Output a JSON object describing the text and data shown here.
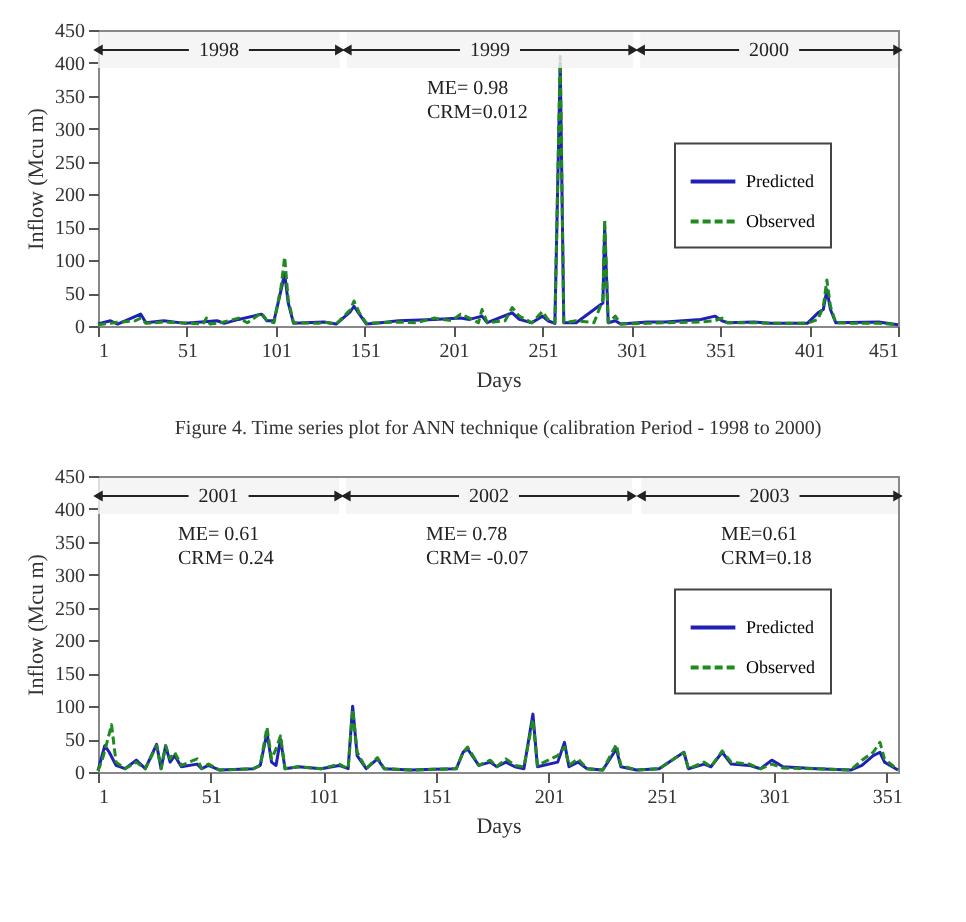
{
  "chart_data": [
    {
      "type": "line",
      "xlabel": "Days",
      "ylabel": "Inflow (Mcu m)",
      "xlim": [
        1,
        451
      ],
      "xticks": [
        1,
        51,
        101,
        151,
        201,
        251,
        301,
        351,
        401,
        451
      ],
      "ylim": [
        0,
        450
      ],
      "yticks": [
        0,
        50,
        100,
        150,
        200,
        250,
        300,
        350,
        400,
        450
      ],
      "grid": false,
      "legend": "right",
      "bands": [
        {
          "axis": "x",
          "from": 1,
          "to": 137,
          "label": "1998"
        },
        {
          "axis": "x",
          "from": 141,
          "to": 302,
          "label": "1999"
        },
        {
          "axis": "x",
          "from": 306,
          "to": 451,
          "label": "2000"
        }
      ],
      "annotations": [
        "ME= 0.98\nCRM=0.012",
        "Figure 4. Time series plot for ANN technique (calibration Period - 1998 to 2000)"
      ],
      "series": [
        {
          "name": "Predicted",
          "color": "#2020b8",
          "line_style": "solid",
          "x": [
            1,
            8,
            12,
            25,
            28,
            38,
            50,
            68,
            72,
            80,
            93,
            96,
            100,
            104,
            106,
            108,
            111,
            128,
            135,
            143,
            145,
            148,
            152,
            160,
            170,
            190,
            205,
            210,
            217,
            220,
            234,
            238,
            245,
            251,
            254,
            258,
            261,
            263,
            270,
            285,
            286,
            288,
            292,
            295,
            310,
            320,
            340,
            348,
            352,
            355,
            370,
            380,
            400,
            406,
            409,
            411,
            413,
            416,
            440,
            451
          ],
          "values": [
            3,
            8,
            3,
            18,
            5,
            8,
            4,
            8,
            4,
            10,
            18,
            8,
            8,
            55,
            80,
            35,
            4,
            6,
            3,
            22,
            30,
            18,
            3,
            5,
            8,
            10,
            12,
            10,
            15,
            5,
            20,
            10,
            5,
            15,
            8,
            4,
            400,
            5,
            5,
            35,
            150,
            5,
            8,
            3,
            6,
            6,
            10,
            15,
            8,
            5,
            6,
            4,
            4,
            20,
            25,
            55,
            25,
            5,
            6,
            2
          ]
        },
        {
          "name": "Observed",
          "color": "#1f8a1f",
          "line_style": "dashed",
          "x": [
            1,
            10,
            22,
            25,
            28,
            38,
            48,
            60,
            62,
            64,
            70,
            80,
            85,
            93,
            96,
            100,
            104,
            106,
            108,
            111,
            125,
            128,
            135,
            143,
            145,
            148,
            152,
            160,
            170,
            180,
            190,
            195,
            200,
            205,
            210,
            215,
            217,
            220,
            230,
            234,
            238,
            245,
            251,
            254,
            258,
            261,
            263,
            270,
            280,
            285,
            286,
            288,
            292,
            295,
            310,
            320,
            340,
            348,
            352,
            355,
            370,
            380,
            400,
            406,
            409,
            411,
            413,
            416,
            425,
            440,
            451
          ],
          "values": [
            2,
            5,
            8,
            12,
            4,
            6,
            5,
            3,
            12,
            3,
            5,
            12,
            5,
            20,
            8,
            5,
            60,
            105,
            40,
            5,
            4,
            6,
            3,
            25,
            38,
            20,
            4,
            5,
            6,
            5,
            12,
            10,
            8,
            18,
            12,
            5,
            25,
            5,
            8,
            28,
            15,
            5,
            22,
            10,
            5,
            410,
            5,
            8,
            5,
            40,
            162,
            5,
            15,
            3,
            4,
            5,
            6,
            8,
            12,
            5,
            5,
            4,
            4,
            10,
            30,
            70,
            30,
            5,
            4,
            4,
            2
          ]
        }
      ]
    },
    {
      "type": "line",
      "xlabel": "Days",
      "ylabel": "Inflow (Mcu m)",
      "xlim": [
        1,
        356
      ],
      "xticks": [
        1,
        51,
        101,
        151,
        201,
        251,
        301,
        351
      ],
      "ylim": [
        0,
        450
      ],
      "yticks": [
        0,
        50,
        100,
        150,
        200,
        250,
        300,
        350,
        400,
        450
      ],
      "grid": false,
      "legend": "right",
      "bands": [
        {
          "axis": "x",
          "from": 1,
          "to": 108,
          "label": "2001"
        },
        {
          "axis": "x",
          "from": 111,
          "to": 238,
          "label": "2002"
        },
        {
          "axis": "x",
          "from": 242,
          "to": 356,
          "label": "2003"
        }
      ],
      "annotations": [
        "ME= 0.61\nCRM= 0.24",
        "ME= 0.78\nCRM= -0.07",
        "ME=0.61\nCRM=0.18"
      ],
      "series": [
        {
          "name": "Predicted",
          "color": "#2020b8",
          "line_style": "solid",
          "x": [
            1,
            4,
            6,
            9,
            13,
            18,
            22,
            27,
            29,
            31,
            33,
            35,
            38,
            45,
            47,
            50,
            55,
            70,
            73,
            76,
            78,
            80,
            82,
            84,
            90,
            100,
            108,
            112,
            114,
            116,
            120,
            125,
            128,
            140,
            150,
            160,
            163,
            165,
            170,
            175,
            178,
            182,
            186,
            190,
            194,
            196,
            205,
            208,
            210,
            214,
            218,
            225,
            231,
            233,
            240,
            250,
            261,
            263,
            270,
            273,
            278,
            282,
            290,
            295,
            300,
            305,
            320,
            335,
            340,
            345,
            348,
            350,
            356
          ],
          "values": [
            2,
            40,
            30,
            10,
            5,
            18,
            5,
            42,
            5,
            40,
            15,
            25,
            8,
            12,
            5,
            10,
            3,
            5,
            10,
            60,
            15,
            10,
            50,
            5,
            8,
            5,
            10,
            5,
            100,
            25,
            5,
            20,
            5,
            3,
            4,
            5,
            30,
            35,
            10,
            15,
            8,
            15,
            8,
            5,
            88,
            8,
            15,
            45,
            8,
            15,
            5,
            3,
            35,
            8,
            3,
            5,
            30,
            5,
            12,
            8,
            30,
            12,
            10,
            5,
            18,
            8,
            5,
            3,
            10,
            25,
            30,
            15,
            3
          ]
        },
        {
          "name": "Observed",
          "color": "#1f8a1f",
          "line_style": "dashed",
          "x": [
            1,
            3,
            5,
            7,
            9,
            13,
            18,
            22,
            27,
            29,
            31,
            33,
            35,
            38,
            45,
            47,
            50,
            55,
            70,
            73,
            76,
            78,
            80,
            82,
            84,
            90,
            100,
            108,
            112,
            114,
            116,
            120,
            125,
            128,
            140,
            150,
            160,
            163,
            165,
            170,
            175,
            178,
            182,
            186,
            190,
            194,
            196,
            205,
            208,
            210,
            214,
            218,
            225,
            231,
            233,
            240,
            250,
            261,
            263,
            270,
            273,
            278,
            282,
            290,
            295,
            300,
            305,
            320,
            335,
            340,
            345,
            348,
            350,
            356
          ],
          "values": [
            2,
            20,
            45,
            72,
            15,
            5,
            15,
            5,
            40,
            5,
            40,
            20,
            30,
            10,
            20,
            5,
            12,
            3,
            5,
            10,
            68,
            20,
            35,
            55,
            5,
            8,
            5,
            12,
            5,
            95,
            30,
            5,
            22,
            5,
            3,
            4,
            5,
            30,
            38,
            10,
            18,
            8,
            20,
            10,
            8,
            80,
            10,
            25,
            38,
            10,
            20,
            5,
            3,
            42,
            10,
            3,
            5,
            30,
            5,
            15,
            8,
            32,
            15,
            12,
            5,
            12,
            6,
            5,
            3,
            18,
            30,
            45,
            20,
            3
          ]
        }
      ]
    }
  ]
}
